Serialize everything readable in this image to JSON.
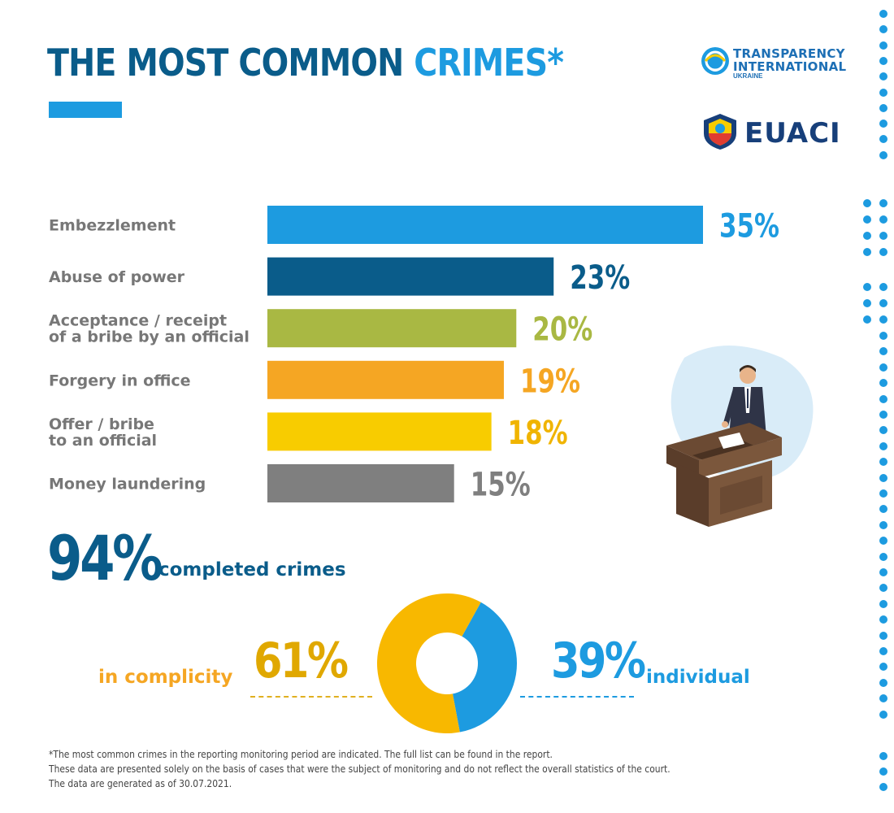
{
  "header": {
    "title_main": "THE MOST COMMON ",
    "title_accent": "CRIMES*",
    "accent_color": "#1d9be0",
    "title_color": "#0a5c8a"
  },
  "logos": {
    "transparency": {
      "line1": "TRANSPARENCY",
      "line2": "INTERNATIONAL",
      "line3": "UKRAINE"
    },
    "euaci": {
      "word": "EUACI"
    }
  },
  "chart_data": {
    "type": "bar",
    "orientation": "horizontal",
    "categories": [
      [
        "Embezzlement"
      ],
      [
        "Abuse of power"
      ],
      [
        "Acceptance / receipt",
        "of a bribe by an official"
      ],
      [
        "Forgery in office"
      ],
      [
        "Offer / bribe",
        "to an official"
      ],
      [
        "Money laundering"
      ]
    ],
    "values": [
      35,
      23,
      20,
      19,
      18,
      15
    ],
    "value_labels": [
      "35%",
      "23%",
      "20%",
      "19%",
      "18%",
      "15%"
    ],
    "colors": [
      "#1d9be0",
      "#0a5c8a",
      "#a9b843",
      "#f5a623",
      "#f8cc00",
      "#7f7f7f"
    ],
    "label_colors": [
      "#1d9be0",
      "#0a5c8a",
      "#a9b843",
      "#f5a623",
      "#f0b400",
      "#7f7f7f"
    ],
    "xlim": [
      0,
      35
    ],
    "grid": false,
    "legend": "none"
  },
  "summary": {
    "completed_value": "94%",
    "completed_label": "completed crimes"
  },
  "split": {
    "complicity_label": "in complicity",
    "complicity_value": "61%",
    "complicity_share": 61,
    "complicity_color": "#f8b800",
    "individual_value": "39%",
    "individual_label": "individual",
    "individual_share": 39,
    "individual_color": "#1d9be0"
  },
  "footnotes": [
    "*The most common crimes in the reporting monitoring period are indicated. The full list can be found in the report.",
    "These data are presented solely on the basis of cases that were the subject of monitoring and do not reflect the overall statistics of the court.",
    "The data are generated as of 30.07.2021."
  ]
}
